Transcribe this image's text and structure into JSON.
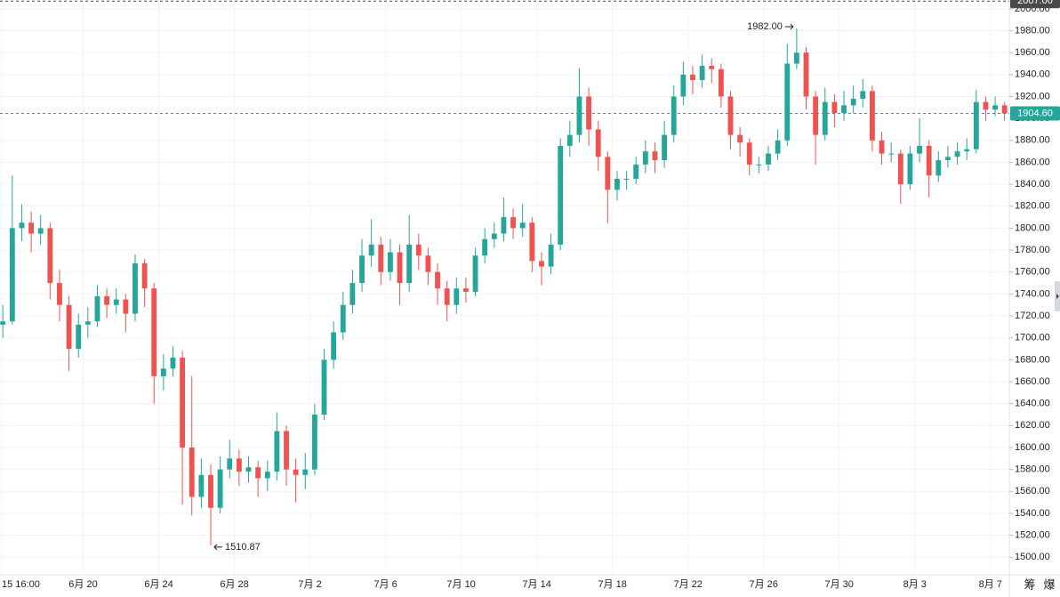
{
  "chart_data": {
    "type": "candlestick",
    "up_color": "#26a69a",
    "down_color": "#ef5350",
    "grid": true,
    "xlim": [
      15.6,
      69.0
    ],
    "ylim": [
      1484,
      2008
    ],
    "xticks": [
      {
        "value": 15.67,
        "label": "15 16:00"
      },
      {
        "value": 20,
        "label": "6月 20"
      },
      {
        "value": 24,
        "label": "6月 24"
      },
      {
        "value": 28,
        "label": "6月 28"
      },
      {
        "value": 32,
        "label": "7月 2"
      },
      {
        "value": 36,
        "label": "7月 6"
      },
      {
        "value": 40,
        "label": "7月 10"
      },
      {
        "value": 44,
        "label": "7月 14"
      },
      {
        "value": 48,
        "label": "7月 18"
      },
      {
        "value": 52,
        "label": "7月 22"
      },
      {
        "value": 56,
        "label": "7月 26"
      },
      {
        "value": 60,
        "label": "7月 30"
      },
      {
        "value": 64,
        "label": "8月 3"
      },
      {
        "value": 68,
        "label": "8月 7"
      }
    ],
    "yticks": [
      {
        "value": 1500,
        "label": "1500.00"
      },
      {
        "value": 1520,
        "label": "1520.00"
      },
      {
        "value": 1540,
        "label": "1540.00"
      },
      {
        "value": 1560,
        "label": "1560.00"
      },
      {
        "value": 1580,
        "label": "1580.00"
      },
      {
        "value": 1600,
        "label": "1600.00"
      },
      {
        "value": 1620,
        "label": "1620.00"
      },
      {
        "value": 1640,
        "label": "1640.00"
      },
      {
        "value": 1660,
        "label": "1660.00"
      },
      {
        "value": 1680,
        "label": "1680.00"
      },
      {
        "value": 1700,
        "label": "1700.00"
      },
      {
        "value": 1720,
        "label": "1720.00"
      },
      {
        "value": 1740,
        "label": "1740.00"
      },
      {
        "value": 1760,
        "label": "1760.00"
      },
      {
        "value": 1780,
        "label": "1780.00"
      },
      {
        "value": 1800,
        "label": "1800.00"
      },
      {
        "value": 1820,
        "label": "1820.00"
      },
      {
        "value": 1840,
        "label": "1840.00"
      },
      {
        "value": 1860,
        "label": "1860.00"
      },
      {
        "value": 1880,
        "label": "1880.00"
      },
      {
        "value": 1900,
        "label": "1900.00"
      },
      {
        "value": 1920,
        "label": "1920.00"
      },
      {
        "value": 1940,
        "label": "1940.00"
      },
      {
        "value": 1960,
        "label": "1960.00"
      },
      {
        "value": 1980,
        "label": "1980.00"
      },
      {
        "value": 2000,
        "label": "2000.00"
      }
    ],
    "x": [
      15.75,
      16.25,
      16.75,
      17.25,
      17.75,
      18.25,
      18.75,
      19.25,
      19.75,
      20.25,
      20.75,
      21.25,
      21.75,
      22.25,
      22.75,
      23.25,
      23.75,
      24.25,
      24.75,
      25.25,
      25.75,
      26.25,
      26.75,
      27.25,
      27.75,
      28.25,
      28.75,
      29.25,
      29.75,
      30.25,
      30.75,
      31.25,
      31.75,
      32.25,
      32.75,
      33.25,
      33.75,
      34.25,
      34.75,
      35.25,
      35.75,
      36.25,
      36.75,
      37.25,
      37.75,
      38.25,
      38.75,
      39.25,
      39.75,
      40.25,
      40.75,
      41.25,
      41.75,
      42.25,
      42.75,
      43.25,
      43.75,
      44.25,
      44.75,
      45.25,
      45.75,
      46.25,
      46.75,
      47.25,
      47.75,
      48.25,
      48.75,
      49.25,
      49.75,
      50.25,
      50.75,
      51.25,
      51.75,
      52.25,
      52.75,
      53.25,
      53.75,
      54.25,
      54.75,
      55.25,
      55.75,
      56.25,
      56.75,
      57.25,
      57.75,
      58.25,
      58.75,
      59.25,
      59.75,
      60.25,
      60.75,
      61.25,
      61.75,
      62.25,
      62.75,
      63.25,
      63.75,
      64.25,
      64.75,
      65.25,
      65.75,
      66.25,
      66.75,
      67.25,
      67.75,
      68.25,
      68.75
    ],
    "open": [
      1712,
      1715,
      1800,
      1805,
      1795,
      1800,
      1750,
      1730,
      1690,
      1712,
      1715,
      1738,
      1730,
      1735,
      1722,
      1768,
      1745,
      1665,
      1672,
      1682,
      1600,
      1555,
      1575,
      1545,
      1580,
      1590,
      1578,
      1582,
      1572,
      1578,
      1615,
      1580,
      1575,
      1580,
      1630,
      1680,
      1705,
      1730,
      1750,
      1775,
      1785,
      1760,
      1778,
      1750,
      1785,
      1775,
      1760,
      1745,
      1730,
      1745,
      1742,
      1775,
      1790,
      1795,
      1810,
      1800,
      1805,
      1770,
      1765,
      1785,
      1875,
      1885,
      1920,
      1890,
      1865,
      1835,
      1845,
      1845,
      1858,
      1870,
      1862,
      1885,
      1920,
      1940,
      1935,
      1948,
      1945,
      1920,
      1885,
      1878,
      1858,
      1858,
      1868,
      1880,
      1950,
      1960,
      1920,
      1885,
      1915,
      1905,
      1912,
      1918,
      1925,
      1880,
      1868,
      1868,
      1840,
      1868,
      1875,
      1848,
      1862,
      1865,
      1870,
      1872,
      1915,
      1908,
      1912
    ],
    "high": [
      1730,
      1848,
      1822,
      1815,
      1812,
      1805,
      1762,
      1738,
      1722,
      1728,
      1748,
      1745,
      1745,
      1740,
      1776,
      1772,
      1750,
      1685,
      1692,
      1688,
      1665,
      1590,
      1585,
      1592,
      1607,
      1598,
      1592,
      1588,
      1588,
      1632,
      1620,
      1590,
      1595,
      1640,
      1690,
      1715,
      1742,
      1762,
      1790,
      1808,
      1792,
      1790,
      1785,
      1812,
      1795,
      1782,
      1768,
      1752,
      1755,
      1755,
      1782,
      1800,
      1805,
      1828,
      1818,
      1822,
      1810,
      1778,
      1795,
      1882,
      1898,
      1946,
      1928,
      1898,
      1870,
      1852,
      1852,
      1865,
      1880,
      1878,
      1898,
      1930,
      1952,
      1948,
      1958,
      1955,
      1950,
      1925,
      1892,
      1882,
      1865,
      1875,
      1890,
      1968,
      1982,
      1965,
      1925,
      1928,
      1922,
      1925,
      1930,
      1936,
      1930,
      1888,
      1878,
      1872,
      1875,
      1900,
      1880,
      1870,
      1875,
      1878,
      1882,
      1926,
      1920,
      1920,
      1915
    ],
    "low": [
      1700,
      1712,
      1788,
      1778,
      1785,
      1735,
      1715,
      1670,
      1682,
      1700,
      1710,
      1718,
      1722,
      1705,
      1715,
      1728,
      1640,
      1652,
      1665,
      1548,
      1538,
      1545,
      1510.87,
      1540,
      1572,
      1565,
      1568,
      1555,
      1560,
      1570,
      1565,
      1550,
      1562,
      1575,
      1625,
      1672,
      1698,
      1722,
      1742,
      1765,
      1748,
      1752,
      1730,
      1742,
      1762,
      1748,
      1730,
      1715,
      1722,
      1732,
      1738,
      1768,
      1782,
      1788,
      1790,
      1792,
      1760,
      1748,
      1758,
      1780,
      1865,
      1878,
      1875,
      1852,
      1805,
      1825,
      1835,
      1840,
      1850,
      1850,
      1855,
      1878,
      1912,
      1922,
      1928,
      1932,
      1910,
      1872,
      1865,
      1848,
      1850,
      1852,
      1862,
      1875,
      1945,
      1908,
      1858,
      1880,
      1892,
      1898,
      1905,
      1910,
      1870,
      1858,
      1860,
      1822,
      1835,
      1860,
      1828,
      1842,
      1855,
      1858,
      1862,
      1868,
      1898,
      1902,
      1898
    ],
    "close": [
      1715,
      1800,
      1805,
      1795,
      1800,
      1750,
      1730,
      1690,
      1712,
      1715,
      1738,
      1730,
      1735,
      1722,
      1768,
      1745,
      1665,
      1672,
      1682,
      1600,
      1555,
      1575,
      1545,
      1580,
      1590,
      1578,
      1582,
      1572,
      1578,
      1615,
      1580,
      1575,
      1580,
      1630,
      1680,
      1705,
      1730,
      1750,
      1775,
      1785,
      1760,
      1778,
      1750,
      1785,
      1775,
      1760,
      1745,
      1730,
      1745,
      1742,
      1775,
      1790,
      1795,
      1810,
      1800,
      1805,
      1770,
      1765,
      1785,
      1875,
      1885,
      1920,
      1890,
      1865,
      1835,
      1845,
      1845,
      1858,
      1870,
      1862,
      1885,
      1920,
      1940,
      1935,
      1948,
      1945,
      1920,
      1885,
      1878,
      1858,
      1858,
      1868,
      1880,
      1950,
      1960,
      1920,
      1885,
      1915,
      1905,
      1912,
      1918,
      1925,
      1880,
      1868,
      1868,
      1840,
      1868,
      1875,
      1848,
      1862,
      1865,
      1870,
      1872,
      1915,
      1908,
      1912,
      1904.6
    ],
    "max_label": {
      "value": 1982,
      "label": "1982.00"
    },
    "min_label": {
      "value": 1510.87,
      "label": "1510.87"
    },
    "last_price": {
      "value": 1904.6,
      "label": "1904.60",
      "color": "#26a69a"
    },
    "top_price": {
      "value": 2007,
      "label": "2007.00",
      "color": "#4a4a4a"
    },
    "toolbar": [
      "筹",
      "爆"
    ]
  }
}
